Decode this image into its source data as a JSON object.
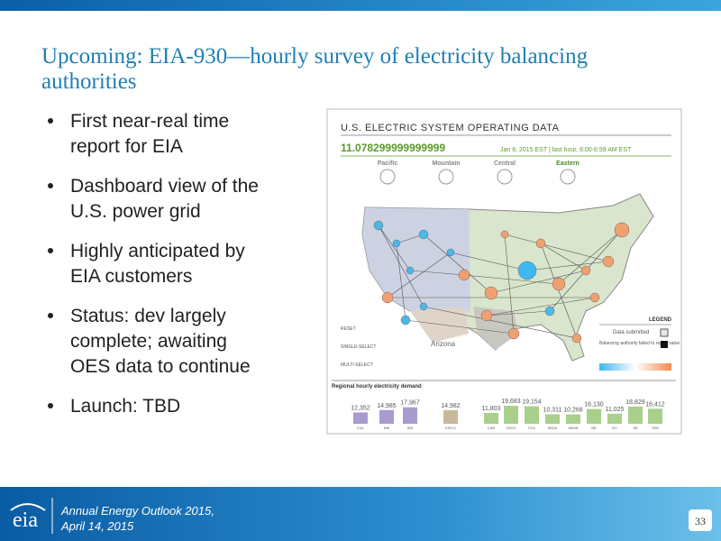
{
  "slide": {
    "title_lines": [
      "Upcoming:  EIA-930—hourly survey of electricity balancing",
      "authorities"
    ],
    "bullets": [
      [
        "First near-real time",
        "report for EIA"
      ],
      [
        "Dashboard view of the",
        "U.S. power grid"
      ],
      [
        "Highly anticipated by",
        "EIA customers"
      ],
      [
        "Status: dev largely",
        "complete; awaiting",
        "OES data to continue"
      ],
      [
        "Launch: TBD"
      ]
    ],
    "screenshot": {
      "header": "U.S. ELECTRIC SYSTEM OPERATING DATA",
      "value": "11.078299999999999",
      "date": "Jan 8, 2015 EST | last hour, 6:00-6:59 AM EST",
      "zones": [
        "Pacific",
        "Mountain",
        "Central",
        "Eastern"
      ],
      "region_label": "Arizona",
      "controls": [
        "RESET",
        "SINGLE-SELECT",
        "MULTI-SELECT"
      ],
      "legend": {
        "title": "LEGEND",
        "items": [
          "Data submitted",
          "Balancing authority failed to report value"
        ]
      },
      "demand": {
        "title": "Regional hourly electricity demand",
        "categories": [
          "CAL",
          "NW",
          "SW",
          "ERCO",
          "CAR",
          "CENT",
          "FLA",
          "MIDA",
          "MIDW",
          "NE",
          "NY",
          "SE",
          "TEN"
        ],
        "values": [
          12352,
          14985,
          17967,
          14982,
          11803,
          19683,
          19154,
          10311,
          10268,
          16130,
          11025,
          18829,
          16412
        ],
        "value_labels": [
          "12,352",
          "14,985",
          "17,967",
          "14,982",
          "11,803",
          "19,683",
          "19,154",
          "10,311",
          "10,268",
          "16,130",
          "11,025",
          "18,829",
          "16,412"
        ]
      }
    }
  },
  "footer": {
    "lines": [
      "Annual Energy Outlook 2015,",
      "April 14, 2015"
    ],
    "logo": "eia",
    "page": "33"
  }
}
